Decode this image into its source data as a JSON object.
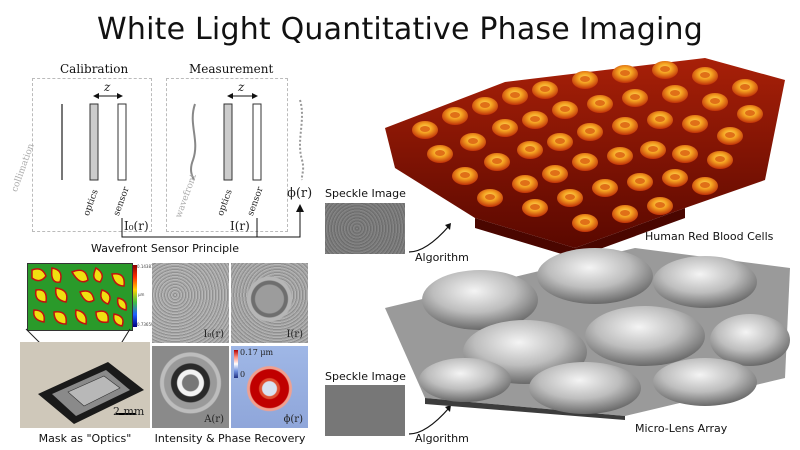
{
  "title": "White Light Quantitative Phase Imaging",
  "principle": {
    "calibration_label": "Calibration",
    "measurement_label": "Measurement",
    "z_label": "z",
    "collimation_label": "collimation",
    "optics_label": "optics",
    "sensor_label": "sensor",
    "wavefront_label": "wavefront",
    "i0_label": "I₀(r)",
    "i_label": "I(r)",
    "phi_label": "ϕ(r)",
    "caption": "Wavefront Sensor Principle"
  },
  "mask": {
    "scalebar_label": "2 mm",
    "caption": "Mask as \"Optics\"",
    "colorbar_top": "0.14387",
    "colorbar_unit": "μm",
    "colorbar_bottom": "0.73659"
  },
  "recovery": {
    "i0_label": "I₀(r)",
    "i_label": "I(r)",
    "a_label": "A(r)",
    "phi_label": "ϕ(r)",
    "phase_max": "0.17 μm",
    "phase_min": "0",
    "caption": "Intensity & Phase Recovery"
  },
  "rbc": {
    "speckle_label": "Speckle Image",
    "algorithm_label": "Algorithm",
    "caption": "Human Red Blood Cells"
  },
  "mla": {
    "speckle_label": "Speckle Image",
    "algorithm_label": "Algorithm",
    "caption": "Micro-Lens Array"
  }
}
